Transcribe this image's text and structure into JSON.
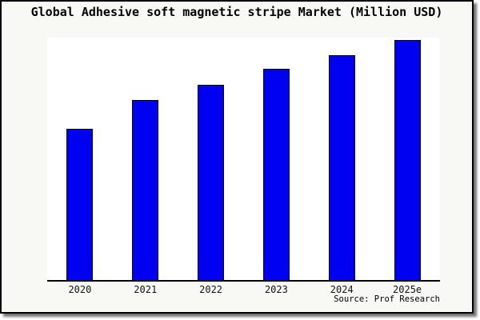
{
  "page": {
    "background_color": "#ffffff",
    "frame_background": "#f8f8f5",
    "frame_border_color": "#000000",
    "shadow_color": "#888888"
  },
  "chart_data": {
    "type": "bar",
    "title": "Global Adhesive soft magnetic stripe Market (Million USD)",
    "categories": [
      "2020",
      "2021",
      "2022",
      "2023",
      "2024",
      "2025e"
    ],
    "values": [
      62.9,
      75.1,
      81.4,
      88.0,
      93.6,
      100
    ],
    "value_scale": "relative, max bar = 100; y-axis has no ticks or labels in chart",
    "xlabel": "",
    "ylabel": "",
    "ylim": [
      0,
      101
    ],
    "gridlines": false,
    "y_axis_visible": false,
    "bar_color": "#0101f2",
    "bar_border_color": "#000000",
    "plot_background": "#ffffff",
    "axis_color": "#000000",
    "source_note": "Source: Prof Research"
  }
}
